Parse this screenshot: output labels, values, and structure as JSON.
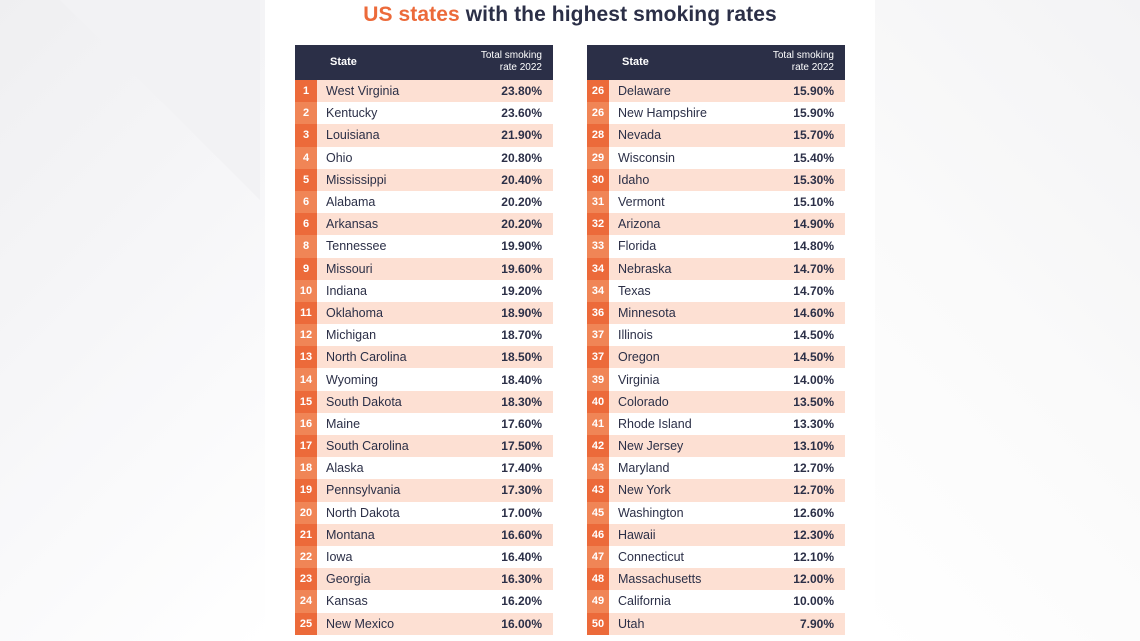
{
  "title": {
    "accent": "US states",
    "rest": " with the highest smoking rates"
  },
  "headers": {
    "state": "State",
    "rate_line1": "Total smoking",
    "rate_line2": "rate 2022"
  },
  "rows": [
    {
      "rank": "1",
      "state": "West Virginia",
      "rate": "23.80%"
    },
    {
      "rank": "2",
      "state": "Kentucky",
      "rate": "23.60%"
    },
    {
      "rank": "3",
      "state": "Louisiana",
      "rate": "21.90%"
    },
    {
      "rank": "4",
      "state": "Ohio",
      "rate": "20.80%"
    },
    {
      "rank": "5",
      "state": "Mississippi",
      "rate": "20.40%"
    },
    {
      "rank": "6",
      "state": "Alabama",
      "rate": "20.20%"
    },
    {
      "rank": "6",
      "state": "Arkansas",
      "rate": "20.20%"
    },
    {
      "rank": "8",
      "state": "Tennessee",
      "rate": "19.90%"
    },
    {
      "rank": "9",
      "state": "Missouri",
      "rate": "19.60%"
    },
    {
      "rank": "10",
      "state": "Indiana",
      "rate": "19.20%"
    },
    {
      "rank": "11",
      "state": "Oklahoma",
      "rate": "18.90%"
    },
    {
      "rank": "12",
      "state": "Michigan",
      "rate": "18.70%"
    },
    {
      "rank": "13",
      "state": "North Carolina",
      "rate": "18.50%"
    },
    {
      "rank": "14",
      "state": "Wyoming",
      "rate": "18.40%"
    },
    {
      "rank": "15",
      "state": "South Dakota",
      "rate": "18.30%"
    },
    {
      "rank": "16",
      "state": "Maine",
      "rate": "17.60%"
    },
    {
      "rank": "17",
      "state": "South Carolina",
      "rate": "17.50%"
    },
    {
      "rank": "18",
      "state": "Alaska",
      "rate": "17.40%"
    },
    {
      "rank": "19",
      "state": "Pennsylvania",
      "rate": "17.30%"
    },
    {
      "rank": "20",
      "state": "North Dakota",
      "rate": "17.00%"
    },
    {
      "rank": "21",
      "state": "Montana",
      "rate": "16.60%"
    },
    {
      "rank": "22",
      "state": "Iowa",
      "rate": "16.40%"
    },
    {
      "rank": "23",
      "state": "Georgia",
      "rate": "16.30%"
    },
    {
      "rank": "24",
      "state": "Kansas",
      "rate": "16.20%"
    },
    {
      "rank": "25",
      "state": "New Mexico",
      "rate": "16.00%"
    },
    {
      "rank": "26",
      "state": "Delaware",
      "rate": "15.90%"
    },
    {
      "rank": "26",
      "state": "New Hampshire",
      "rate": "15.90%"
    },
    {
      "rank": "28",
      "state": "Nevada",
      "rate": "15.70%"
    },
    {
      "rank": "29",
      "state": "Wisconsin",
      "rate": "15.40%"
    },
    {
      "rank": "30",
      "state": "Idaho",
      "rate": "15.30%"
    },
    {
      "rank": "31",
      "state": "Vermont",
      "rate": "15.10%"
    },
    {
      "rank": "32",
      "state": "Arizona",
      "rate": "14.90%"
    },
    {
      "rank": "33",
      "state": "Florida",
      "rate": "14.80%"
    },
    {
      "rank": "34",
      "state": "Nebraska",
      "rate": "14.70%"
    },
    {
      "rank": "34",
      "state": "Texas",
      "rate": "14.70%"
    },
    {
      "rank": "36",
      "state": "Minnesota",
      "rate": "14.60%"
    },
    {
      "rank": "37",
      "state": "Illinois",
      "rate": "14.50%"
    },
    {
      "rank": "37",
      "state": "Oregon",
      "rate": "14.50%"
    },
    {
      "rank": "39",
      "state": "Virginia",
      "rate": "14.00%"
    },
    {
      "rank": "40",
      "state": "Colorado",
      "rate": "13.50%"
    },
    {
      "rank": "41",
      "state": "Rhode Island",
      "rate": "13.30%"
    },
    {
      "rank": "42",
      "state": "New Jersey",
      "rate": "13.10%"
    },
    {
      "rank": "43",
      "state": "Maryland",
      "rate": "12.70%"
    },
    {
      "rank": "43",
      "state": "New York",
      "rate": "12.70%"
    },
    {
      "rank": "45",
      "state": "Washington",
      "rate": "12.60%"
    },
    {
      "rank": "46",
      "state": "Hawaii",
      "rate": "12.30%"
    },
    {
      "rank": "47",
      "state": "Connecticut",
      "rate": "12.10%"
    },
    {
      "rank": "48",
      "state": "Massachusetts",
      "rate": "12.00%"
    },
    {
      "rank": "49",
      "state": "California",
      "rate": "10.00%"
    },
    {
      "rank": "50",
      "state": "Utah",
      "rate": "7.90%"
    }
  ],
  "colors": {
    "header_bg": "#2b2f47",
    "accent_orange": "#ec6a3a",
    "row_tint": "#fde0d3"
  }
}
